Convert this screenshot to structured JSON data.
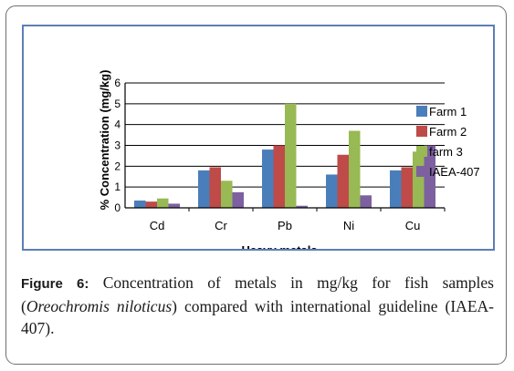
{
  "chart_data": {
    "type": "bar",
    "categories": [
      "Cd",
      "Cr",
      "Pb",
      "Ni",
      "Cu"
    ],
    "series": [
      {
        "name": "Farm 1",
        "color": "#4a7ebb",
        "values": [
          0.35,
          1.8,
          2.8,
          1.6,
          1.8
        ]
      },
      {
        "name": "Farm 2",
        "color": "#be4b48",
        "values": [
          0.3,
          1.95,
          3.0,
          2.55,
          1.95
        ]
      },
      {
        "name": "farm 3",
        "color": "#98b954",
        "values": [
          0.45,
          1.3,
          5.0,
          3.7,
          2.7
        ]
      },
      {
        "name": "IAEA-407",
        "color": "#7d60a0",
        "values": [
          0.2,
          0.75,
          0.1,
          0.6,
          3.0
        ]
      }
    ],
    "yticks": [
      "0",
      "1",
      "2",
      "3",
      "4",
      "5",
      "6"
    ],
    "ylim": [
      0,
      6
    ],
    "ylabel": "% Concentration (mg/kg)",
    "xlabel": "Heavy metals",
    "grid": true,
    "legend": "right"
  },
  "caption": {
    "label": "Figure 6:",
    "text_1": " Concentration of metals in mg/kg for fish samples (",
    "species": "Oreochromis niloticus",
    "text_2": ") compared with international guideline (IAEA-407)."
  }
}
